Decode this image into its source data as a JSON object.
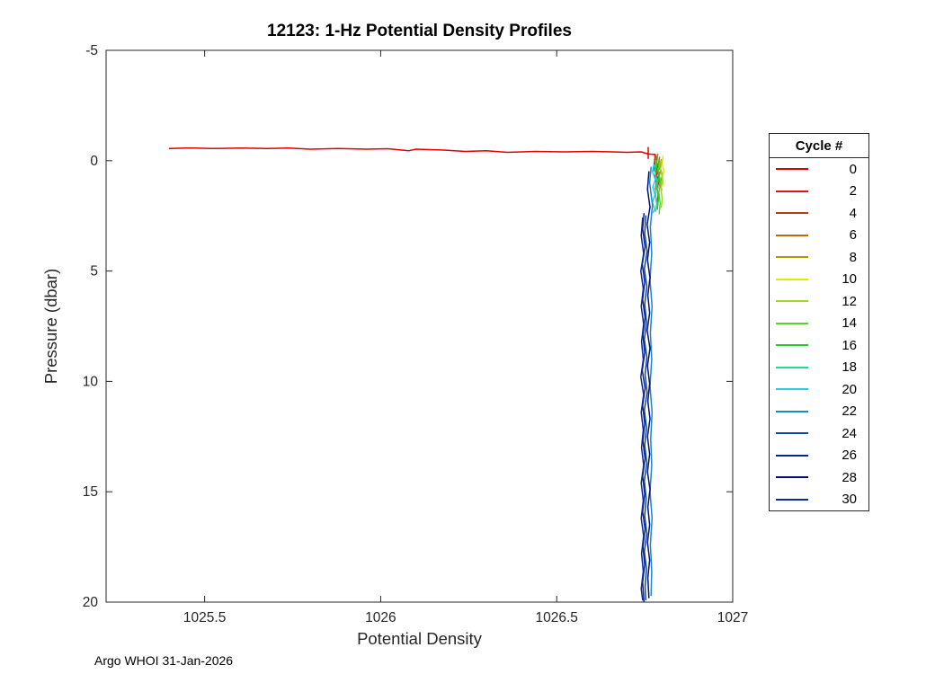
{
  "figure": {
    "footer": "Argo WHOI 31-Jan-2026"
  },
  "chart_data": {
    "type": "line",
    "title": "12123: 1-Hz Potential Density Profiles",
    "xlabel": "Potential Density",
    "ylabel": "Pressure (dbar)",
    "xlim": [
      1025.22,
      1027
    ],
    "ylim": [
      -5,
      20
    ],
    "y_axis_direction": "reversed",
    "grid": false,
    "x_ticks": [
      1025.5,
      1026,
      1026.5,
      1027
    ],
    "x_tick_labels": [
      "1025.5",
      "1026",
      "1026.5",
      "1027"
    ],
    "y_ticks": [
      -5,
      0,
      5,
      10,
      15,
      20
    ],
    "y_tick_labels": [
      "-5",
      "0",
      "5",
      "10",
      "15",
      "20"
    ],
    "legend": {
      "title": "Cycle #",
      "position": "right-outside"
    },
    "series": [
      {
        "name": "0",
        "color": "#e00000",
        "points": [
          [
            1025.4,
            -0.55
          ],
          [
            1025.46,
            -0.58
          ],
          [
            1025.52,
            -0.55
          ],
          [
            1025.6,
            -0.57
          ],
          [
            1025.68,
            -0.55
          ],
          [
            1025.74,
            -0.57
          ],
          [
            1025.8,
            -0.52
          ],
          [
            1025.88,
            -0.55
          ],
          [
            1025.96,
            -0.52
          ],
          [
            1026.02,
            -0.54
          ],
          [
            1026.08,
            -0.45
          ],
          [
            1026.1,
            -0.52
          ],
          [
            1026.18,
            -0.48
          ],
          [
            1026.24,
            -0.42
          ],
          [
            1026.3,
            -0.45
          ],
          [
            1026.36,
            -0.38
          ],
          [
            1026.44,
            -0.42
          ],
          [
            1026.52,
            -0.4
          ],
          [
            1026.6,
            -0.42
          ],
          [
            1026.66,
            -0.4
          ],
          [
            1026.7,
            -0.38
          ],
          [
            1026.74,
            -0.4
          ],
          [
            1026.76,
            -0.3
          ],
          [
            1026.76,
            -0.6
          ],
          [
            1026.76,
            -0.1
          ],
          [
            1026.76,
            -0.3
          ],
          [
            1026.78,
            -0.28
          ],
          [
            1026.775,
            0.45
          ]
        ]
      },
      {
        "name": "2",
        "color": "#d81414",
        "points": [
          [
            1026.786,
            -0.25
          ],
          [
            1026.783,
            0.05
          ],
          [
            1026.789,
            0.35
          ],
          [
            1026.784,
            0.65
          ],
          [
            1026.79,
            0.95
          ],
          [
            1026.785,
            1.25
          ],
          [
            1026.788,
            1.55
          ],
          [
            1026.786,
            1.85
          ]
        ]
      },
      {
        "name": "4",
        "color": "#bc3a10",
        "points": [
          [
            1026.781,
            -0.2
          ],
          [
            1026.778,
            0.1
          ],
          [
            1026.784,
            0.4
          ],
          [
            1026.779,
            0.7
          ],
          [
            1026.783,
            1.0
          ],
          [
            1026.78,
            1.3
          ]
        ]
      },
      {
        "name": "6",
        "color": "#bf6a00",
        "points": [
          [
            1026.792,
            -0.15
          ],
          [
            1026.789,
            0.15
          ],
          [
            1026.795,
            0.45
          ],
          [
            1026.79,
            0.75
          ],
          [
            1026.793,
            1.05
          ],
          [
            1026.791,
            1.25
          ]
        ]
      },
      {
        "name": "8",
        "color": "#a89900",
        "points": [
          [
            1026.797,
            -0.05
          ],
          [
            1026.794,
            0.3
          ],
          [
            1026.8,
            0.65
          ],
          [
            1026.795,
            1.0
          ],
          [
            1026.798,
            1.35
          ]
        ]
      },
      {
        "name": "10",
        "color": "#e6e600",
        "points": [
          [
            1026.802,
            -0.2
          ],
          [
            1026.799,
            0.1
          ],
          [
            1026.804,
            0.45
          ],
          [
            1026.8,
            0.8
          ],
          [
            1026.803,
            1.1
          ]
        ]
      },
      {
        "name": "12",
        "color": "#9cdc20",
        "points": [
          [
            1026.798,
            0.0
          ],
          [
            1026.795,
            0.4
          ],
          [
            1026.801,
            0.85
          ],
          [
            1026.796,
            1.3
          ],
          [
            1026.8,
            1.75
          ],
          [
            1026.797,
            2.1
          ]
        ]
      },
      {
        "name": "14",
        "color": "#58d428",
        "points": [
          [
            1026.792,
            0.0
          ],
          [
            1026.789,
            0.45
          ],
          [
            1026.795,
            0.95
          ],
          [
            1026.79,
            1.45
          ],
          [
            1026.794,
            1.95
          ],
          [
            1026.791,
            2.4
          ]
        ]
      },
      {
        "name": "16",
        "color": "#28c828",
        "points": [
          [
            1026.787,
            -0.3
          ],
          [
            1026.784,
            0.2
          ],
          [
            1026.79,
            0.7
          ],
          [
            1026.785,
            1.2
          ],
          [
            1026.789,
            1.7
          ],
          [
            1026.786,
            2.2
          ]
        ]
      },
      {
        "name": "18",
        "color": "#28d88c",
        "points": [
          [
            1026.782,
            0.0
          ],
          [
            1026.779,
            0.45
          ],
          [
            1026.785,
            0.95
          ],
          [
            1026.78,
            1.45
          ],
          [
            1026.784,
            1.95
          ],
          [
            1026.781,
            2.3
          ]
        ]
      },
      {
        "name": "20",
        "color": "#28c8e8",
        "points": [
          [
            1026.776,
            0.2
          ],
          [
            1026.772,
            0.5
          ],
          [
            1026.78,
            0.85
          ],
          [
            1026.773,
            1.2
          ],
          [
            1026.779,
            1.55
          ],
          [
            1026.772,
            1.9
          ],
          [
            1026.778,
            2.2
          ],
          [
            1026.774,
            2.35
          ]
        ]
      },
      {
        "name": "22",
        "color": "#1888c8",
        "points": [
          [
            1026.768,
            0.3
          ],
          [
            1026.764,
            1.0
          ],
          [
            1026.772,
            2.0
          ],
          [
            1026.766,
            3.0
          ],
          [
            1026.77,
            4.2
          ],
          [
            1026.765,
            5.4
          ],
          [
            1026.771,
            6.6
          ],
          [
            1026.766,
            7.8
          ],
          [
            1026.77,
            9.0
          ],
          [
            1026.765,
            10.2
          ],
          [
            1026.771,
            11.4
          ],
          [
            1026.767,
            12.6
          ],
          [
            1026.77,
            13.8
          ],
          [
            1026.765,
            15.0
          ],
          [
            1026.771,
            16.2
          ],
          [
            1026.766,
            17.4
          ],
          [
            1026.77,
            18.6
          ],
          [
            1026.768,
            19.7
          ]
        ]
      },
      {
        "name": "24",
        "color": "#1048a8",
        "points": [
          [
            1026.753,
            2.5
          ],
          [
            1026.75,
            3.3
          ],
          [
            1026.757,
            4.1
          ],
          [
            1026.749,
            4.9
          ],
          [
            1026.756,
            5.7
          ],
          [
            1026.75,
            6.5
          ],
          [
            1026.755,
            7.3
          ],
          [
            1026.749,
            8.1
          ],
          [
            1026.756,
            8.9
          ],
          [
            1026.751,
            9.7
          ],
          [
            1026.757,
            10.5
          ],
          [
            1026.749,
            11.3
          ],
          [
            1026.755,
            12.1
          ],
          [
            1026.75,
            12.9
          ],
          [
            1026.756,
            13.7
          ],
          [
            1026.749,
            14.5
          ],
          [
            1026.754,
            15.3
          ],
          [
            1026.75,
            16.1
          ],
          [
            1026.756,
            16.9
          ],
          [
            1026.749,
            17.7
          ],
          [
            1026.755,
            18.5
          ],
          [
            1026.751,
            19.3
          ],
          [
            1026.753,
            19.9
          ]
        ]
      },
      {
        "name": "26",
        "color": "#082888",
        "points": [
          [
            1026.748,
            2.4
          ],
          [
            1026.744,
            3.1
          ],
          [
            1026.751,
            3.9
          ],
          [
            1026.743,
            4.7
          ],
          [
            1026.75,
            5.5
          ],
          [
            1026.744,
            6.3
          ],
          [
            1026.751,
            7.1
          ],
          [
            1026.745,
            7.9
          ],
          [
            1026.75,
            8.7
          ],
          [
            1026.743,
            9.5
          ],
          [
            1026.751,
            10.3
          ],
          [
            1026.744,
            11.1
          ],
          [
            1026.75,
            11.9
          ],
          [
            1026.745,
            12.7
          ],
          [
            1026.751,
            13.5
          ],
          [
            1026.744,
            14.3
          ],
          [
            1026.75,
            15.1
          ],
          [
            1026.744,
            15.9
          ],
          [
            1026.751,
            16.7
          ],
          [
            1026.745,
            17.5
          ],
          [
            1026.75,
            18.3
          ],
          [
            1026.744,
            19.1
          ],
          [
            1026.748,
            20.0
          ]
        ]
      },
      {
        "name": "28",
        "color": "#001070",
        "points": [
          [
            1026.762,
            0.5
          ],
          [
            1026.758,
            1.3
          ],
          [
            1026.765,
            2.1
          ],
          [
            1026.757,
            2.9
          ],
          [
            1026.764,
            3.7
          ],
          [
            1026.758,
            4.5
          ],
          [
            1026.765,
            5.3
          ],
          [
            1026.759,
            6.1
          ],
          [
            1026.764,
            6.9
          ],
          [
            1026.757,
            7.7
          ],
          [
            1026.765,
            8.5
          ],
          [
            1026.758,
            9.3
          ],
          [
            1026.764,
            10.1
          ],
          [
            1026.759,
            10.9
          ],
          [
            1026.765,
            11.7
          ],
          [
            1026.758,
            12.5
          ],
          [
            1026.764,
            13.3
          ],
          [
            1026.758,
            14.1
          ],
          [
            1026.765,
            14.9
          ],
          [
            1026.759,
            15.7
          ],
          [
            1026.764,
            16.5
          ],
          [
            1026.758,
            17.3
          ],
          [
            1026.764,
            18.1
          ],
          [
            1026.759,
            18.9
          ],
          [
            1026.762,
            19.8
          ]
        ]
      },
      {
        "name": "30",
        "color": "#0c2898",
        "points": [
          [
            1026.744,
            2.6
          ],
          [
            1026.74,
            3.4
          ],
          [
            1026.747,
            4.2
          ],
          [
            1026.739,
            5.0
          ],
          [
            1026.746,
            5.8
          ],
          [
            1026.74,
            6.6
          ],
          [
            1026.747,
            7.4
          ],
          [
            1026.741,
            8.2
          ],
          [
            1026.746,
            9.0
          ],
          [
            1026.739,
            9.8
          ],
          [
            1026.747,
            10.6
          ],
          [
            1026.74,
            11.4
          ],
          [
            1026.746,
            12.2
          ],
          [
            1026.741,
            13.0
          ],
          [
            1026.747,
            13.8
          ],
          [
            1026.74,
            14.6
          ],
          [
            1026.746,
            15.4
          ],
          [
            1026.74,
            16.2
          ],
          [
            1026.747,
            17.0
          ],
          [
            1026.741,
            17.8
          ],
          [
            1026.746,
            18.6
          ],
          [
            1026.74,
            19.4
          ],
          [
            1026.744,
            19.9
          ]
        ]
      }
    ]
  }
}
